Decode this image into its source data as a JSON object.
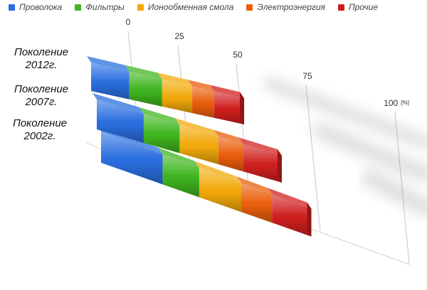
{
  "chart_data": {
    "type": "bar",
    "orientation": "horizontal",
    "stacked": true,
    "percent_stacked": true,
    "perspective_3d": true,
    "categories": [
      "Поколение 2012г.",
      "Поколение 2007г.",
      "Поколение 2002г."
    ],
    "series": [
      {
        "name": "Проволока",
        "color": "#2a6fe0",
        "values": [
          14,
          17,
          22
        ]
      },
      {
        "name": "Фильтры",
        "color": "#3fb51f",
        "values": [
          12,
          13,
          13
        ]
      },
      {
        "name": "Ионообменная смола",
        "color": "#f2a90a",
        "values": [
          11,
          14,
          15
        ]
      },
      {
        "name": "Электроэнергия",
        "color": "#ea5e0a",
        "values": [
          8,
          9,
          11
        ]
      },
      {
        "name": "Прочие",
        "color": "#d11f1f",
        "values": [
          11,
          14,
          14
        ]
      }
    ],
    "xaxis": {
      "ticks": [
        "0",
        "25",
        "50",
        "75",
        "100"
      ],
      "last_tick_suffix": "[%]",
      "min": 0,
      "max": 100
    },
    "grid": true,
    "legend_position": "top"
  }
}
